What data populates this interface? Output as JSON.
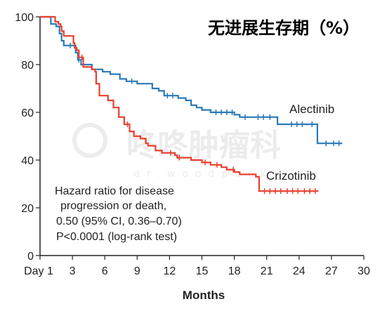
{
  "chart_data": {
    "type": "line",
    "title": "无进展生存期（%）",
    "xlabel": "Months",
    "ylabel": "",
    "xlim": [
      0,
      30
    ],
    "ylim": [
      0,
      100
    ],
    "x_ticks": [
      {
        "value": 0,
        "label": "Day 1"
      },
      {
        "value": 3,
        "label": "3"
      },
      {
        "value": 6,
        "label": "6"
      },
      {
        "value": 9,
        "label": "9"
      },
      {
        "value": 12,
        "label": "12"
      },
      {
        "value": 15,
        "label": "15"
      },
      {
        "value": 18,
        "label": "18"
      },
      {
        "value": 21,
        "label": "21"
      },
      {
        "value": 24,
        "label": "24"
      },
      {
        "value": 27,
        "label": "27"
      },
      {
        "value": 30,
        "label": "30"
      }
    ],
    "y_ticks": [
      0,
      20,
      40,
      60,
      80,
      100
    ],
    "grid": false,
    "series": [
      {
        "name": "Alectinib",
        "color": "#2a7ab8",
        "points": [
          [
            0,
            100
          ],
          [
            1.0,
            100
          ],
          [
            1.0,
            97
          ],
          [
            1.5,
            96
          ],
          [
            1.8,
            93
          ],
          [
            2.0,
            90
          ],
          [
            2.2,
            88
          ],
          [
            3.3,
            88
          ],
          [
            3.3,
            85
          ],
          [
            3.5,
            82
          ],
          [
            3.8,
            80
          ],
          [
            4.8,
            78
          ],
          [
            5.8,
            77
          ],
          [
            6.5,
            76
          ],
          [
            7.4,
            74
          ],
          [
            8.0,
            73
          ],
          [
            9.0,
            72
          ],
          [
            10.4,
            70
          ],
          [
            11.0,
            69
          ],
          [
            11.5,
            67
          ],
          [
            12.8,
            66
          ],
          [
            13.5,
            65
          ],
          [
            14.0,
            63
          ],
          [
            14.5,
            62
          ],
          [
            15.0,
            61
          ],
          [
            15.8,
            60
          ],
          [
            18.0,
            59
          ],
          [
            18.5,
            58
          ],
          [
            22.0,
            58
          ],
          [
            22.0,
            55
          ],
          [
            25.7,
            55
          ],
          [
            25.7,
            47
          ],
          [
            28.0,
            47
          ]
        ],
        "censor_x": [
          2.8,
          3.6,
          8.5,
          11.8,
          12.3,
          16.3,
          16.8,
          17.3,
          17.8,
          19.0,
          20.2,
          20.7,
          21.3,
          23.3,
          23.8,
          24.3,
          25.2,
          26.5,
          27.2,
          27.7
        ]
      },
      {
        "name": "Crizotinib",
        "color": "#e8402e",
        "points": [
          [
            0,
            100
          ],
          [
            1.4,
            100
          ],
          [
            1.4,
            98
          ],
          [
            1.7,
            97
          ],
          [
            1.9,
            96
          ],
          [
            2.0,
            94
          ],
          [
            2.2,
            92
          ],
          [
            3.1,
            89
          ],
          [
            3.2,
            87
          ],
          [
            3.4,
            86
          ],
          [
            3.6,
            83
          ],
          [
            4.0,
            79
          ],
          [
            4.8,
            78
          ],
          [
            5.1,
            77
          ],
          [
            5.2,
            72
          ],
          [
            5.5,
            67
          ],
          [
            6.3,
            65
          ],
          [
            6.8,
            62
          ],
          [
            7.3,
            58
          ],
          [
            7.8,
            55
          ],
          [
            8.3,
            52
          ],
          [
            8.7,
            50
          ],
          [
            9.3,
            49
          ],
          [
            9.8,
            47
          ],
          [
            10.0,
            46
          ],
          [
            10.7,
            44
          ],
          [
            11.3,
            43
          ],
          [
            12.5,
            42
          ],
          [
            12.7,
            41
          ],
          [
            14.0,
            40
          ],
          [
            15.0,
            39
          ],
          [
            15.8,
            38
          ],
          [
            16.8,
            37
          ],
          [
            17.3,
            36
          ],
          [
            18.0,
            35
          ],
          [
            18.5,
            34
          ],
          [
            20.0,
            33
          ],
          [
            20.3,
            29
          ],
          [
            20.3,
            27
          ],
          [
            25.8,
            27
          ]
        ],
        "censor_x": [
          3.9,
          8.1,
          12.1,
          12.9,
          15.3,
          16.4,
          17.9,
          20.8,
          21.3,
          21.8,
          22.3,
          22.9,
          23.4,
          23.9,
          24.5,
          25.0,
          25.5
        ]
      }
    ],
    "legend": "series names drawn next to each curve (right)",
    "annotations": {
      "note_lines": [
        "Hazard ratio for disease",
        "progression or death,",
        "0.50 (95% CI, 0.36–0.70)",
        "P<0.0001 (log-rank test)"
      ],
      "watermark": "咚咚肿瘤科",
      "watermark_sub": "dr.woodpecker"
    }
  }
}
